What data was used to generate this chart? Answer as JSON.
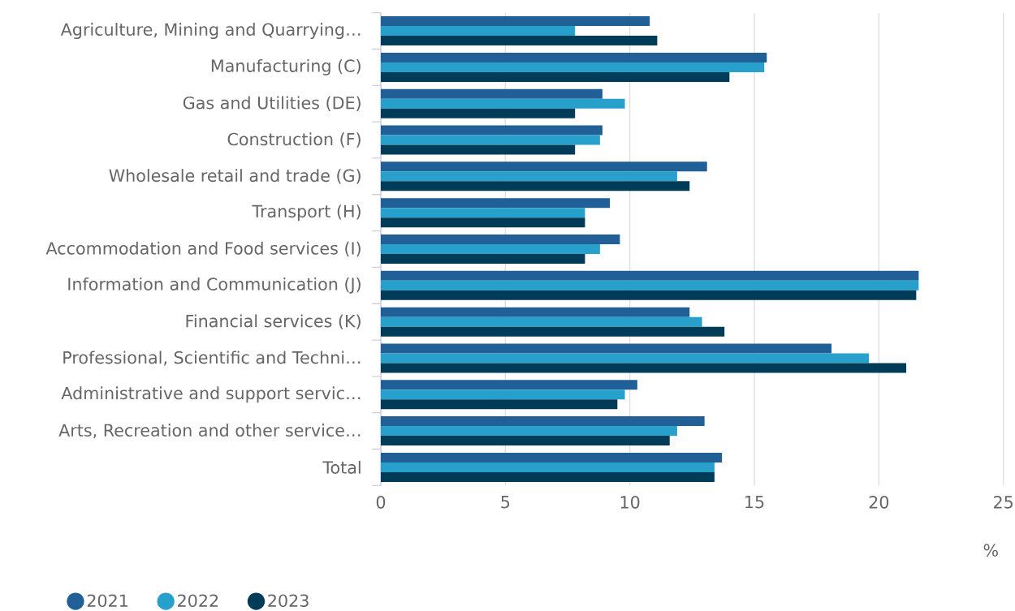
{
  "chart_data": {
    "type": "bar",
    "orientation": "horizontal",
    "categories": [
      "Agriculture, Mining and Quarrying…",
      "Manufacturing (C)",
      "Gas and Utilities (DE)",
      "Construction (F)",
      "Wholesale retail and trade (G)",
      "Transport (H)",
      "Accommodation and Food services (I)",
      "Information and Communication (J)",
      "Financial services (K)",
      "Professional, Scientific and Techni…",
      "Administrative and support servic…",
      "Arts, Recreation and other service…",
      "Total"
    ],
    "series": [
      {
        "name": "2021",
        "color": "#216097",
        "values": [
          10.8,
          15.5,
          8.9,
          8.9,
          13.1,
          9.2,
          9.6,
          21.6,
          12.4,
          18.1,
          10.3,
          13.0,
          13.7
        ]
      },
      {
        "name": "2022",
        "color": "#27a0cc",
        "values": [
          7.8,
          15.4,
          9.8,
          8.8,
          11.9,
          8.2,
          8.8,
          21.6,
          12.9,
          19.6,
          9.8,
          11.9,
          13.4
        ]
      },
      {
        "name": "2023",
        "color": "#003c57",
        "values": [
          11.1,
          14.0,
          7.8,
          7.8,
          12.4,
          8.2,
          8.2,
          21.5,
          13.8,
          21.1,
          9.5,
          11.6,
          13.4
        ]
      }
    ],
    "xlabel": "%",
    "xlim": [
      0,
      25
    ],
    "xticks": [
      0,
      5,
      10,
      15,
      20,
      25
    ],
    "grid": "x",
    "legend": "bottom"
  }
}
